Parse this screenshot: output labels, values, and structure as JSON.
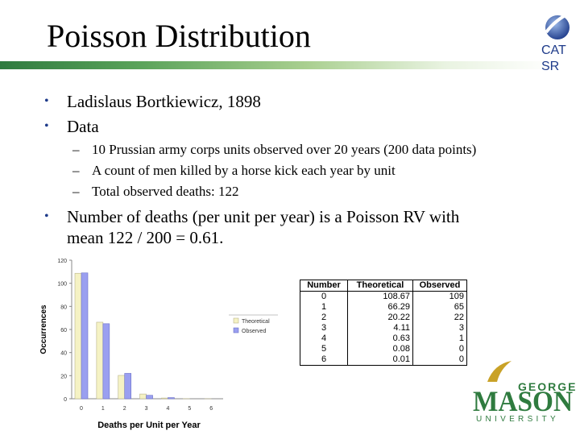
{
  "title": "Poisson Distribution",
  "logo": {
    "line1": "CAT",
    "line2": "SR"
  },
  "bullets": [
    "Ladislaus Bortkiewicz, 1898",
    "Data"
  ],
  "sub_bullets": [
    "10 Prussian army corps units observed over 20 years (200 data points)",
    "A count of men killed by a horse kick each year by unit",
    "Total observed deaths: 122"
  ],
  "bullet3": {
    "line1": "Number of deaths (per unit per year) is a Poisson RV with",
    "line2": "mean 122 / 200 = 0.61."
  },
  "colors": {
    "accent": "#1e3b8a",
    "green": "#2f7b3f",
    "gold": "#c9a227",
    "theoretical": "#f5f2c4",
    "observed": "#9a9ff0"
  },
  "chart_data": {
    "type": "bar",
    "categories": [
      "0",
      "1",
      "2",
      "3",
      "4",
      "5",
      "6"
    ],
    "series": [
      {
        "name": "Theoretical",
        "values": [
          108.67,
          66.29,
          20.22,
          4.11,
          0.63,
          0.08,
          0.01
        ]
      },
      {
        "name": "Observed",
        "values": [
          109,
          65,
          22,
          3,
          1,
          0,
          0
        ]
      }
    ],
    "xlabel": "Deaths per Unit per Year",
    "ylabel": "Occurrences",
    "ylim": [
      0,
      120
    ],
    "yticks": [
      "0",
      "20",
      "40",
      "60",
      "80",
      "100",
      "120"
    ],
    "legend": "right",
    "grid": false
  },
  "table": {
    "headers": [
      "Number",
      "Theoretical",
      "Observed"
    ],
    "rows": [
      [
        "0",
        "108.67",
        "109"
      ],
      [
        "1",
        "66.29",
        "65"
      ],
      [
        "2",
        "20.22",
        "22"
      ],
      [
        "3",
        "4.11",
        "3"
      ],
      [
        "4",
        "0.63",
        "1"
      ],
      [
        "5",
        "0.08",
        "0"
      ],
      [
        "6",
        "0.01",
        "0"
      ]
    ]
  },
  "gmu_logo": {
    "top": "GEORGE",
    "main": "MASON",
    "bottom": "UNIVERSITY"
  }
}
